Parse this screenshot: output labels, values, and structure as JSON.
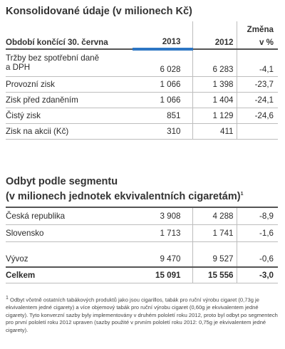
{
  "table1": {
    "title": "Konsolidované údaje (v milionech Kč)",
    "header": {
      "period": "Období končící 30. června",
      "col2013": "2013",
      "col2012": "2012",
      "change_line1": "Změna",
      "change_line2": "v %"
    },
    "rows": [
      {
        "label_line1": "Tržby bez spotřební daně",
        "label_line2": "a DPH",
        "v2013": "6 028",
        "v2012": "6 283",
        "change": "-4,1"
      },
      {
        "label": "Provozní zisk",
        "v2013": "1 066",
        "v2012": "1 398",
        "change": "-23,7"
      },
      {
        "label": "Zisk před zdaněním",
        "v2013": "1 066",
        "v2012": "1 404",
        "change": "-24,1"
      },
      {
        "label": "Čistý zisk",
        "v2013": "851",
        "v2012": "1 129",
        "change": "-24,6"
      },
      {
        "label": "Zisk na akcii (Kč)",
        "v2013": "310",
        "v2012": "411",
        "change": ""
      }
    ]
  },
  "table2": {
    "title_line1": "Odbyt podle segmentu",
    "title_line2": "(v milionech jednotek ekvivalentních cigaretám)",
    "title_sup": "1",
    "rows": [
      {
        "label": "Česká republika",
        "v2013": "3 908",
        "v2012": "4 288",
        "change": "-8,9"
      },
      {
        "label": "Slovensko",
        "v2013": "1 713",
        "v2012": "1 741",
        "change": "-1,6"
      },
      {
        "label": "Vývoz",
        "v2013": "9 470",
        "v2012": "9 527",
        "change": "-0,6"
      }
    ],
    "total": {
      "label": "Celkem",
      "v2013": "15 091",
      "v2012": "15 556",
      "change": "-3,0"
    }
  },
  "footnote": {
    "sup": "1",
    "text": "Odbyt včetně ostatních tabákových produktů jako jsou cigarillos, tabák pro ruční výrobu cigaret (0,73g je ekvivalentem jedné cigarety) a více objemový tabák pro ruční výrobu cigaret (0,60g je ekvivalentem jedné cigarety). Tyto konverzní sazby byly implementovány v druhém pololetí roku 2012, proto byl odbyt po segmentech pro první pololetí roku 2012 upraven (sazby použité v prvním pololetí roku 2012: 0,75g je ekvivalentem jedné cigarety)."
  },
  "colors": {
    "accent_bar": "#2d76c4"
  }
}
